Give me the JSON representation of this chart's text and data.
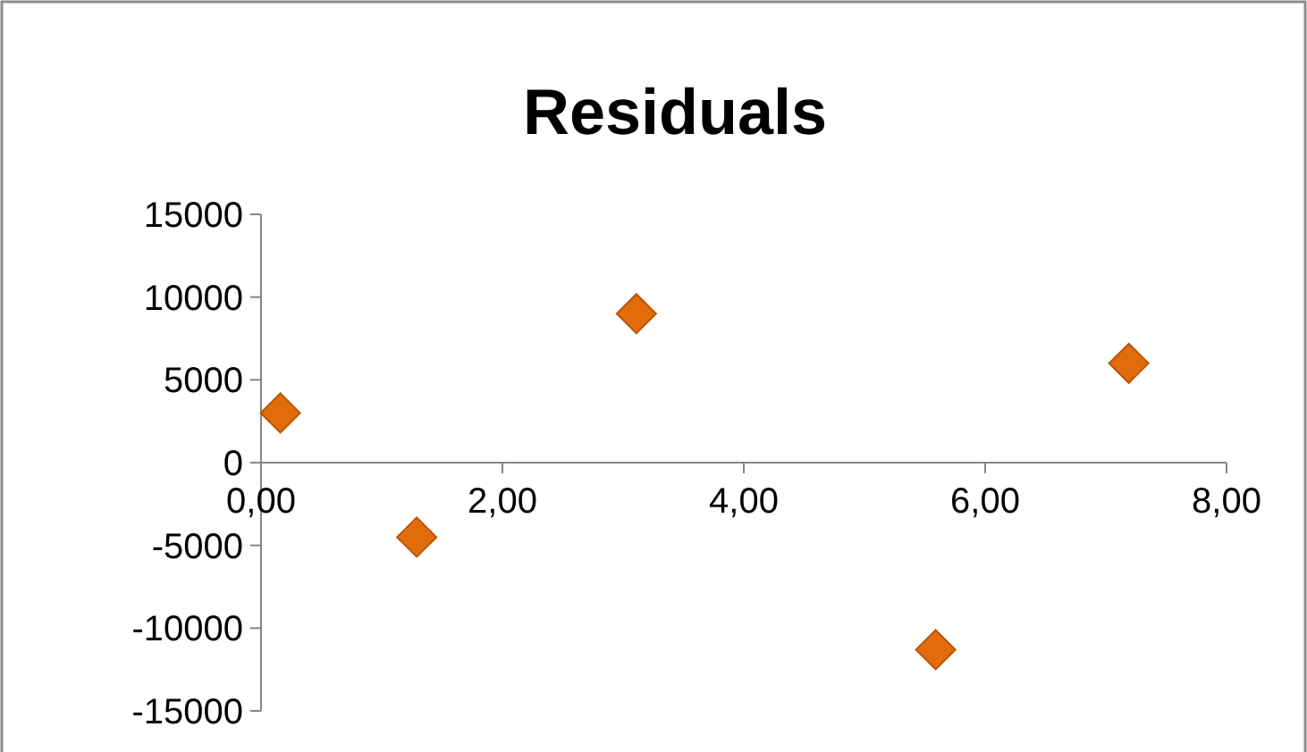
{
  "chart_data": {
    "type": "scatter",
    "title": "Residuals",
    "x": [
      0.16,
      1.29,
      3.11,
      5.59,
      7.19
    ],
    "values": [
      3000,
      -4500,
      9000,
      -11300,
      6000
    ],
    "color": "#e36c0a",
    "marker": "diamond",
    "grid": false,
    "xlim": [
      0,
      8
    ],
    "xticks": [
      {
        "value": 0,
        "label": "0,00"
      },
      {
        "value": 2,
        "label": "2,00"
      },
      {
        "value": 4,
        "label": "4,00"
      },
      {
        "value": 6,
        "label": "6,00"
      },
      {
        "value": 8,
        "label": "8,00"
      }
    ],
    "ylim": [
      -15000,
      15000
    ],
    "yticks": [
      -15000,
      -10000,
      -5000,
      0,
      5000,
      10000,
      15000
    ]
  }
}
